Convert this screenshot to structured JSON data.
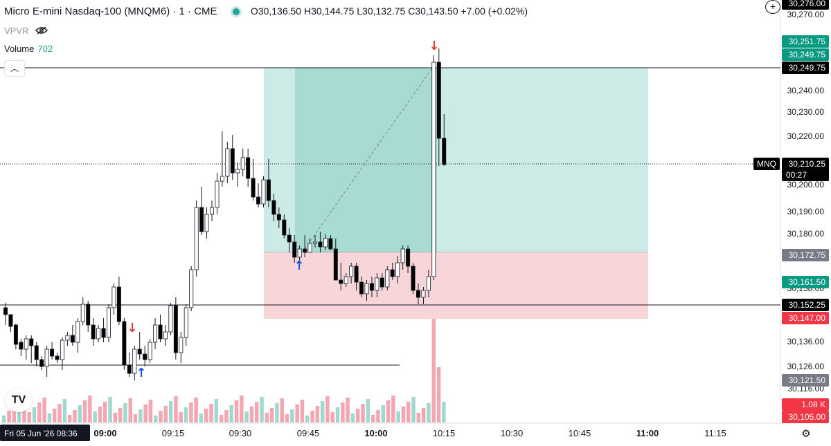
{
  "header": {
    "symbol_title": "Micro E-mini Nasdaq-100 (MNQM6) · 1 · CME",
    "ohlc": "O30,136.50  H30,144.75  L30,132.75  C30,143.50  +7.00 (+0.02%)",
    "indicator": "VPVR",
    "volume_label": "Volume",
    "volume_value": "702"
  },
  "price_axis": {
    "ticks": [
      "30,270.00",
      "30,240.00",
      "30,230.00",
      "30,220.00",
      "30,200.00",
      "30,190.00",
      "30,180.00",
      "30,158.00",
      "30,136.00",
      "30,126.00",
      "30,116.00"
    ],
    "tags": [
      {
        "text": "30,276.00",
        "style": "dark"
      },
      {
        "text": "30,251.75",
        "style": "green"
      },
      {
        "text": "30,249.75",
        "style": "green"
      },
      {
        "text": "30,249.75",
        "style": "dark"
      },
      {
        "text": "30,210.25",
        "style": "dark",
        "sub": "00:27",
        "badge": "MNQ"
      },
      {
        "text": "30,172.75",
        "style": "gray"
      },
      {
        "text": "30,161.50",
        "style": "green"
      },
      {
        "text": "30,152.25",
        "style": "dark"
      },
      {
        "text": "30,147.00",
        "style": "red"
      },
      {
        "text": "30,121.50",
        "style": "gray"
      },
      {
        "text": "1.08 K",
        "style": "red"
      },
      {
        "text": "30,105.00",
        "style": "red"
      }
    ]
  },
  "time_axis": {
    "cursor_date": "Fri 05 Jun '26",
    "cursor_time": "08:36",
    "labels": [
      "09:00",
      "09:15",
      "09:30",
      "09:45",
      "10:00",
      "10:15",
      "10:30",
      "10:45",
      "11:00",
      "11:15"
    ],
    "bold_labels": [
      "09:00",
      "10:00",
      "11:00"
    ]
  },
  "chart_data": {
    "type": "candlestick",
    "symbol": "MNQM6",
    "interval": "1",
    "position": {
      "entry": 30172.75,
      "target": 30249.75,
      "stop": 30147.0
    },
    "horizontal_lines": [
      30249.75,
      30210.25,
      30152.25,
      30126.0
    ],
    "colors": {
      "up": "#ffffff",
      "down": "#000000",
      "profit": "#cdebe6",
      "profit_dark": "#a8dcd3",
      "loss": "#f8d5d8",
      "vol_up": "#9fd9cf",
      "vol_down": "#f5a7b1"
    }
  }
}
